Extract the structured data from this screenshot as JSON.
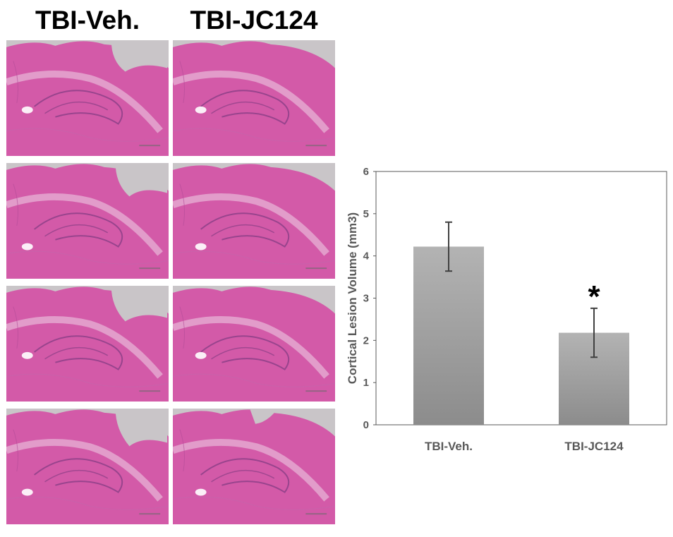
{
  "panel": {
    "columns": [
      "TBI-Veh.",
      "TBI-JC124"
    ],
    "rows": 4,
    "tissue_color": "#d35aa8",
    "background_color": "#c9c5c8"
  },
  "chart_data": {
    "type": "bar",
    "title": "",
    "xlabel": "",
    "ylabel": "Cortical Lesion Volume (mm3)",
    "categories": [
      "TBI-Veh.",
      "TBI-JC124"
    ],
    "values": [
      4.22,
      2.18
    ],
    "error": [
      0.58,
      0.58
    ],
    "annotations": [
      {
        "category": "TBI-JC124",
        "text": "*"
      }
    ],
    "ylim": [
      0,
      6
    ],
    "yticks": [
      0,
      1,
      2,
      3,
      4,
      5,
      6
    ],
    "grid": false,
    "legend": "none",
    "bar_color": "#a6a6a6"
  }
}
